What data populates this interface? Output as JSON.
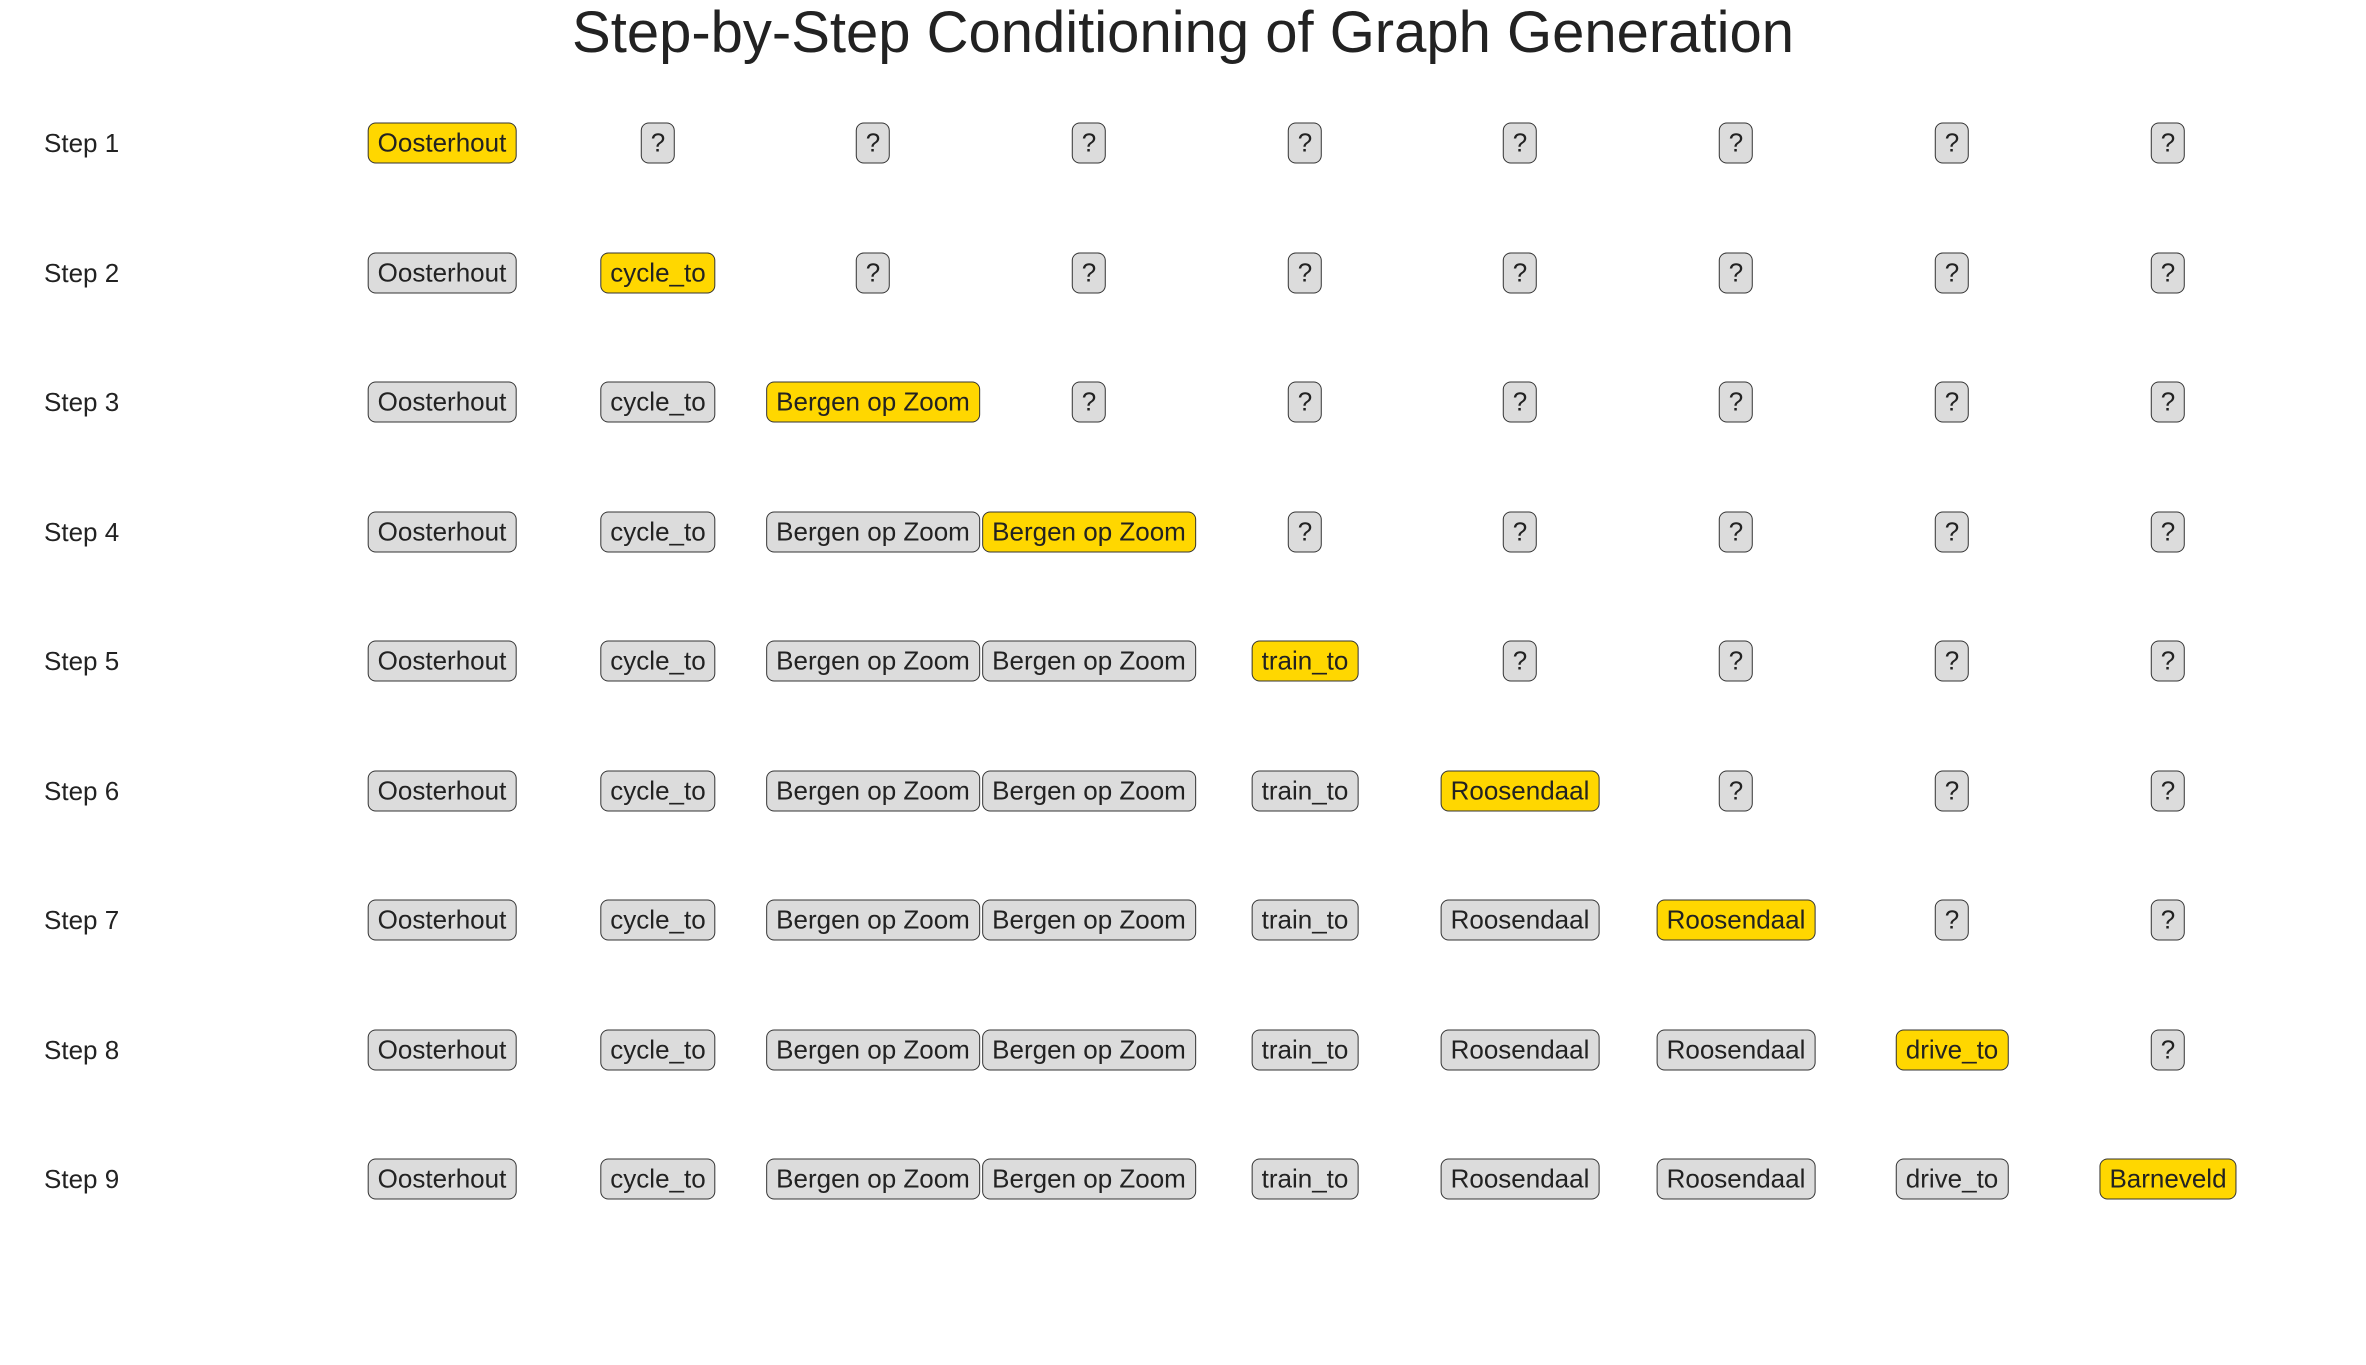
{
  "title": "Step-by-Step Conditioning of Graph Generation",
  "unknown_token": "?",
  "colors": {
    "current": "#ffd700",
    "known": "#dcdcdc",
    "unknown": "#dcdcdc",
    "border": "#333333",
    "text": "#222222"
  },
  "sequence": [
    "Oosterhout",
    "cycle_to",
    "Bergen op Zoom",
    "Bergen op Zoom",
    "train_to",
    "Roosendaal",
    "Roosendaal",
    "drive_to",
    "Barneveld"
  ],
  "steps": [
    {
      "label": "Step 1",
      "revealed": 1
    },
    {
      "label": "Step 2",
      "revealed": 2
    },
    {
      "label": "Step 3",
      "revealed": 3
    },
    {
      "label": "Step 4",
      "revealed": 4
    },
    {
      "label": "Step 5",
      "revealed": 5
    },
    {
      "label": "Step 6",
      "revealed": 6
    },
    {
      "label": "Step 7",
      "revealed": 7
    },
    {
      "label": "Step 8",
      "revealed": 8
    },
    {
      "label": "Step 9",
      "revealed": 9
    }
  ]
}
